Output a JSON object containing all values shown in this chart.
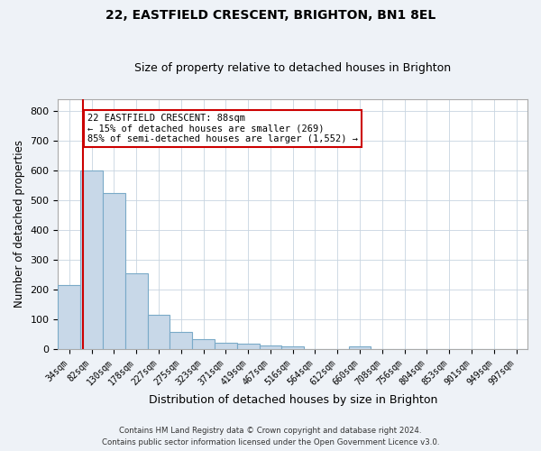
{
  "title1": "22, EASTFIELD CRESCENT, BRIGHTON, BN1 8EL",
  "title2": "Size of property relative to detached houses in Brighton",
  "xlabel": "Distribution of detached houses by size in Brighton",
  "ylabel": "Number of detached properties",
  "bins": [
    "34sqm",
    "82sqm",
    "130sqm",
    "178sqm",
    "227sqm",
    "275sqm",
    "323sqm",
    "371sqm",
    "419sqm",
    "467sqm",
    "516sqm",
    "564sqm",
    "612sqm",
    "660sqm",
    "708sqm",
    "756sqm",
    "804sqm",
    "853sqm",
    "901sqm",
    "949sqm",
    "997sqm"
  ],
  "bar_heights": [
    215,
    600,
    525,
    253,
    116,
    57,
    34,
    20,
    18,
    13,
    8,
    0,
    0,
    8,
    0,
    0,
    0,
    0,
    0,
    0,
    0
  ],
  "bar_color": "#c8d8e8",
  "bar_edge_color": "#7aaac8",
  "bar_edge_width": 0.8,
  "property_line_color": "#cc0000",
  "annotation_text": "22 EASTFIELD CRESCENT: 88sqm\n← 15% of detached houses are smaller (269)\n85% of semi-detached houses are larger (1,552) →",
  "annotation_box_color": "#cc0000",
  "ylim": [
    0,
    840
  ],
  "yticks": [
    0,
    100,
    200,
    300,
    400,
    500,
    600,
    700,
    800
  ],
  "footer1": "Contains HM Land Registry data © Crown copyright and database right 2024.",
  "footer2": "Contains public sector information licensed under the Open Government Licence v3.0.",
  "bg_color": "#eef2f7",
  "plot_bg_color": "#ffffff",
  "grid_color": "#c8d4e0"
}
